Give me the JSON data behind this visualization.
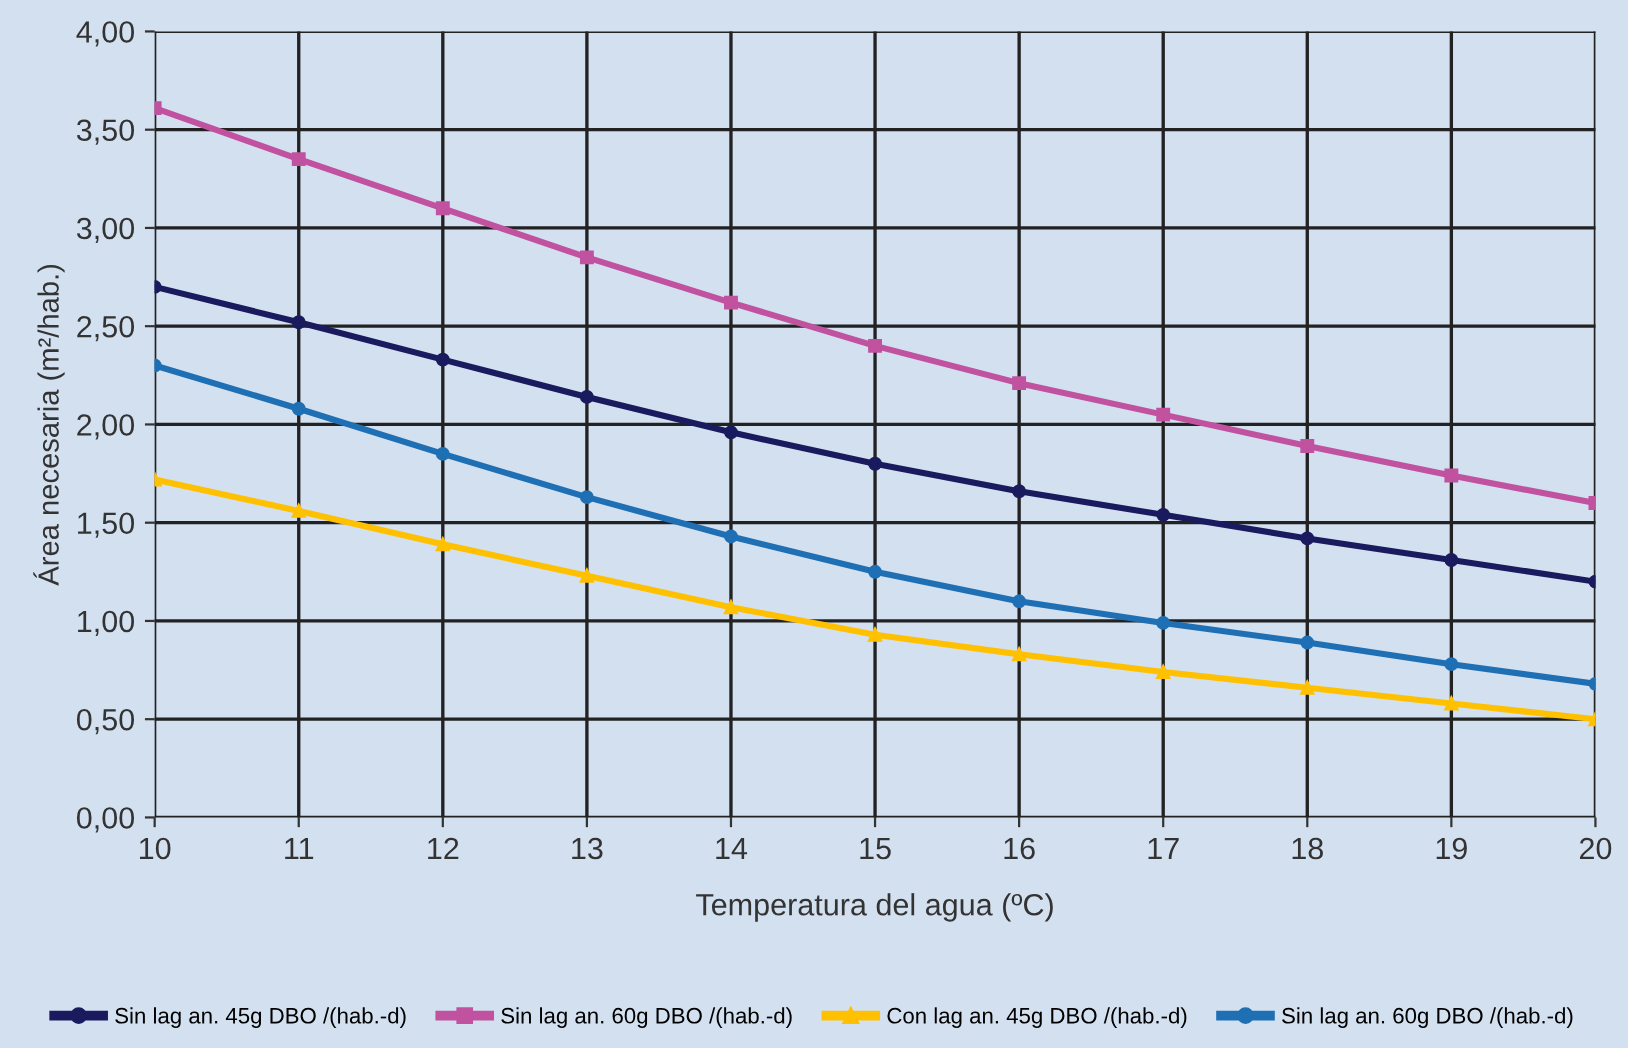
{
  "chart_data": {
    "type": "line",
    "xlabel": "Temperatura del agua (ºC)",
    "ylabel": "Área necesaria (m²/hab.)",
    "x": [
      10,
      11,
      12,
      13,
      14,
      15,
      16,
      17,
      18,
      19,
      20
    ],
    "series": [
      {
        "name": "Sin lag an. 45g DBO /(hab.-d)",
        "color": "#1a1a5e",
        "marker": "circle",
        "values": [
          2.7,
          2.52,
          2.33,
          2.14,
          1.96,
          1.8,
          1.66,
          1.54,
          1.42,
          1.31,
          1.2
        ]
      },
      {
        "name": "Sin lag an. 60g DBO /(hab.-d)",
        "color": "#c0529f",
        "marker": "square",
        "values": [
          3.61,
          3.35,
          3.1,
          2.85,
          2.62,
          2.4,
          2.21,
          2.05,
          1.89,
          1.74,
          1.6
        ]
      },
      {
        "name": "Con lag an. 45g DBO /(hab.-d)",
        "color": "#ffc000",
        "marker": "triangle",
        "values": [
          1.72,
          1.56,
          1.39,
          1.23,
          1.07,
          0.93,
          0.83,
          0.74,
          0.66,
          0.58,
          0.5
        ]
      },
      {
        "name": "Sin lag an. 60g DBO /(hab.-d)",
        "color": "#1f6fb4",
        "marker": "circle",
        "values": [
          2.3,
          2.08,
          1.85,
          1.63,
          1.43,
          1.25,
          1.1,
          0.99,
          0.89,
          0.78,
          0.68
        ]
      }
    ],
    "xlim": [
      10,
      20
    ],
    "xticks": [
      10,
      11,
      12,
      13,
      14,
      15,
      16,
      17,
      18,
      19,
      20
    ],
    "ylim": [
      0,
      4
    ],
    "yticks": [
      {
        "value": 0,
        "label": "0,00"
      },
      {
        "value": 0.5,
        "label": "0,50"
      },
      {
        "value": 1,
        "label": "1,00"
      },
      {
        "value": 1.5,
        "label": "1,50"
      },
      {
        "value": 2,
        "label": "2,00"
      },
      {
        "value": 2.5,
        "label": "2,50"
      },
      {
        "value": 3,
        "label": "3,00"
      },
      {
        "value": 3.5,
        "label": "3,50"
      },
      {
        "value": 4,
        "label": "4,00"
      }
    ],
    "grid": true,
    "legend": "bottom",
    "line_style": "solid"
  }
}
